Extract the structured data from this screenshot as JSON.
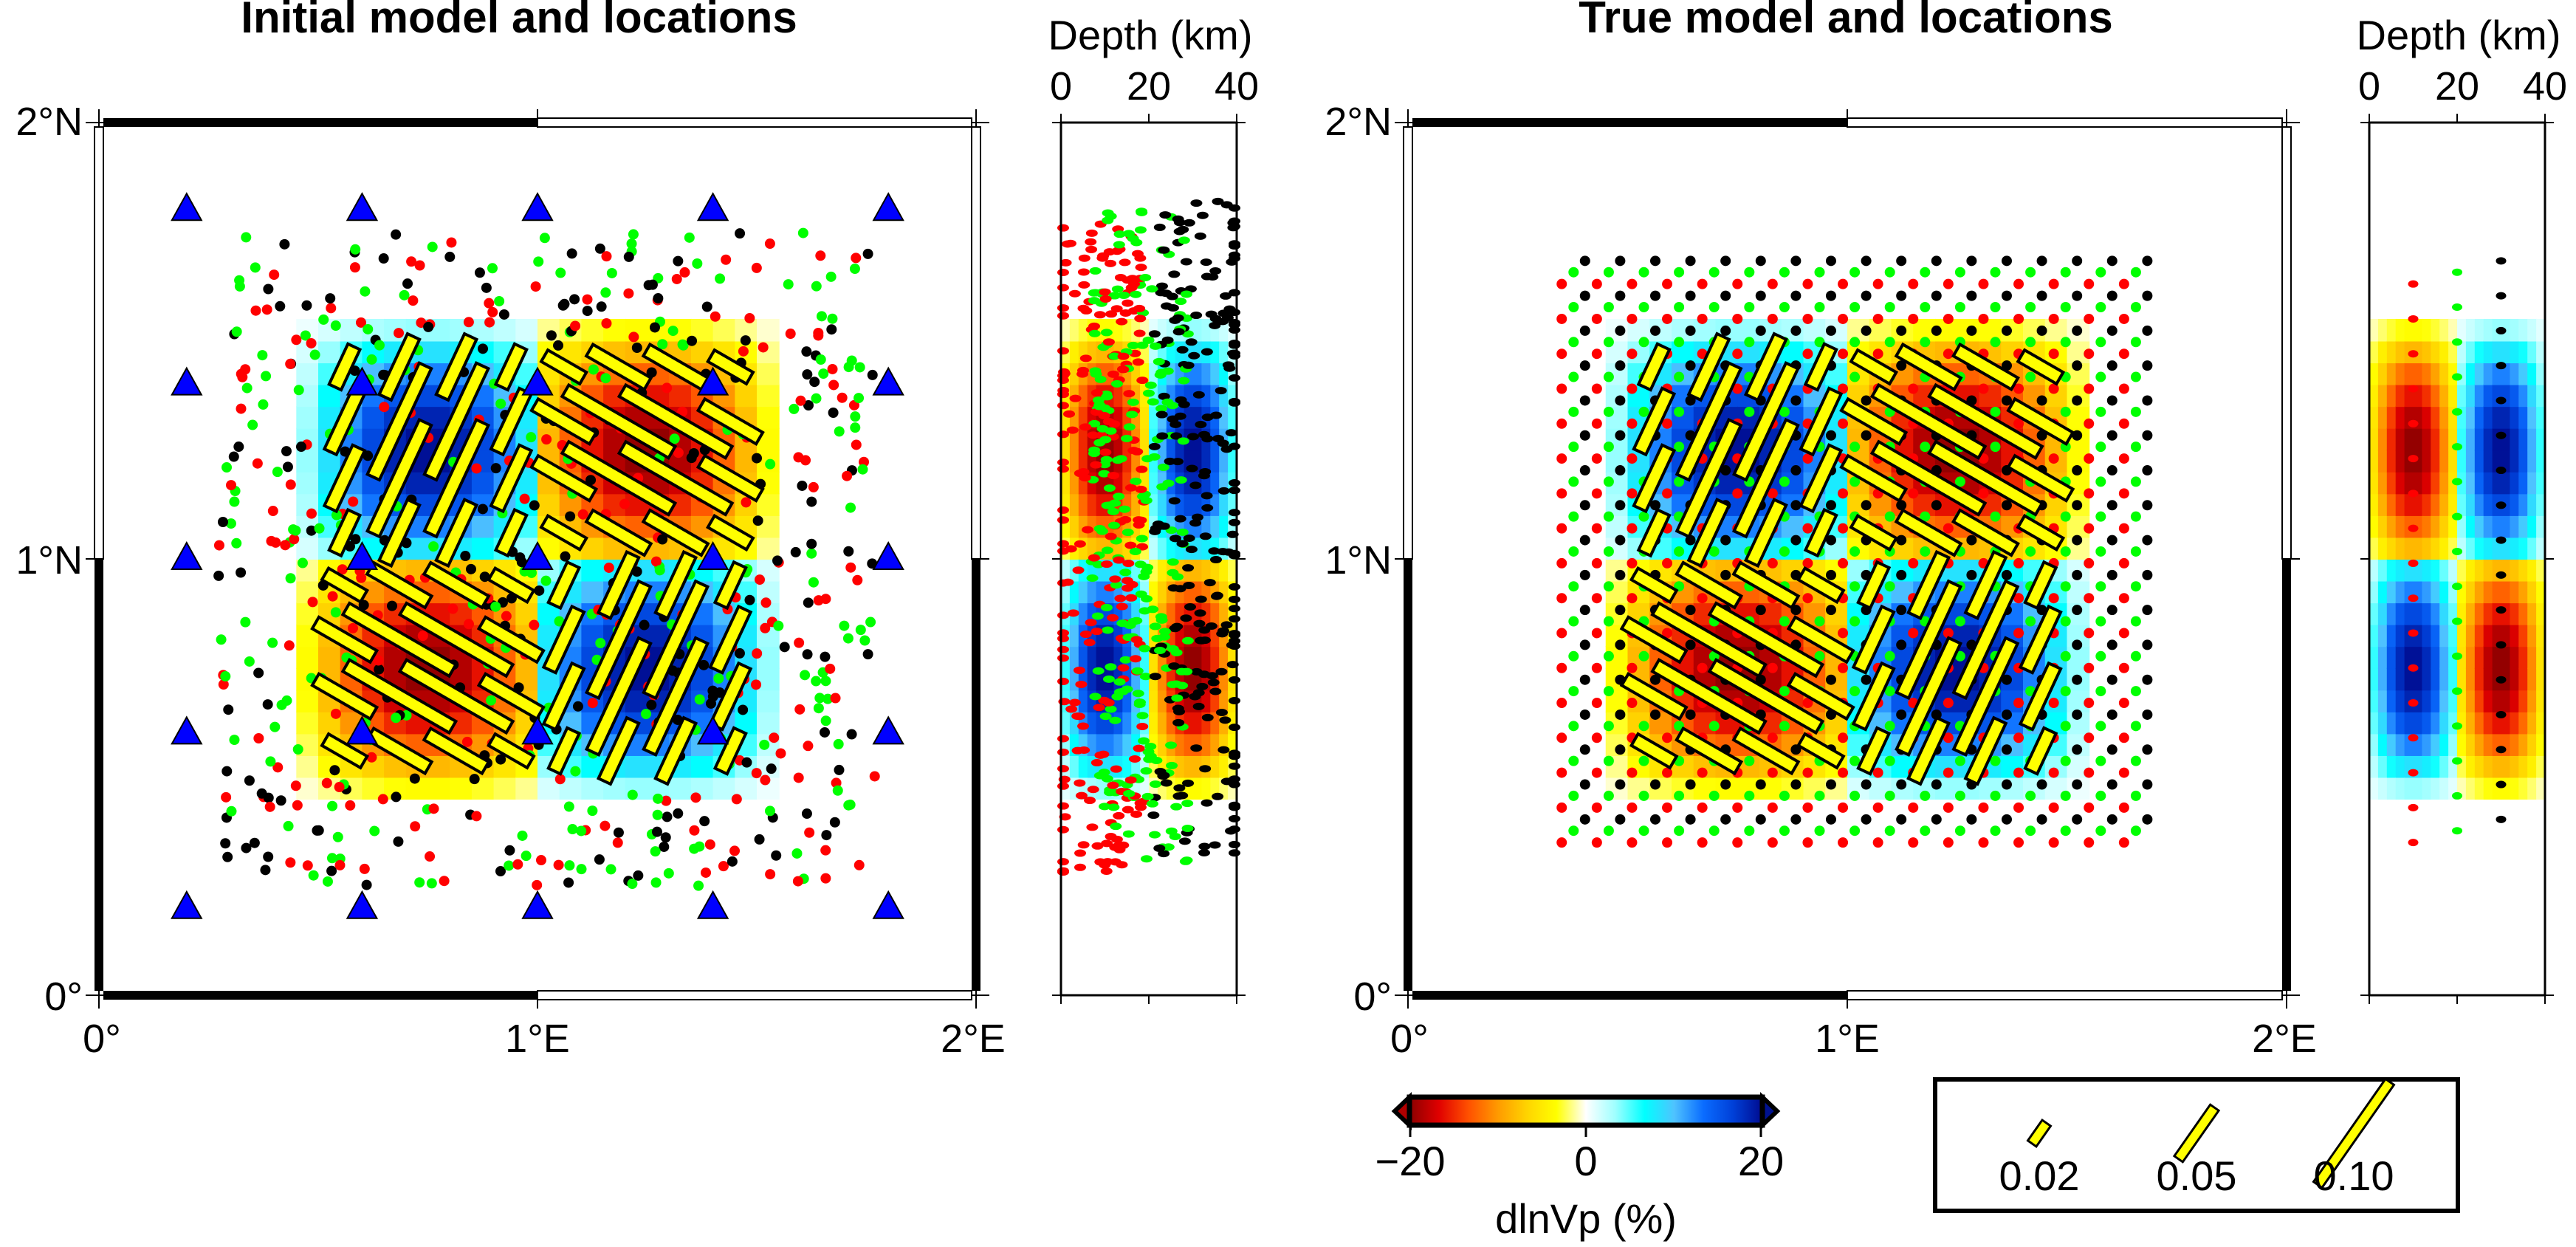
{
  "figure": {
    "panels": [
      {
        "id": "initial",
        "title": "Initial model and locations",
        "lon_ticks": [
          "0°",
          "1°E",
          "2°E"
        ],
        "lat_ticks": [
          "0°",
          "1°N",
          "2°N"
        ],
        "event_pattern": "scattered",
        "show_stations": true
      },
      {
        "id": "true",
        "title": "True model and locations",
        "lon_ticks": [
          "0°",
          "1°E",
          "2°E"
        ],
        "lat_ticks": [
          "0°",
          "1°N",
          "2°N"
        ],
        "event_pattern": "grid",
        "show_stations": false
      }
    ],
    "depth_axis": {
      "label": "Depth (km)",
      "ticks": [
        "0",
        "20",
        "40"
      ],
      "range": [
        0,
        40
      ]
    },
    "map_region": {
      "lon": [
        0,
        2
      ],
      "lat": [
        0,
        2
      ]
    },
    "colorbar": {
      "label": "dlnVp (%)",
      "ticks": [
        "−20",
        "0",
        "20"
      ],
      "range": [
        -20,
        20
      ],
      "colors": [
        "#8b0000",
        "#e00000",
        "#ff5000",
        "#ff9a00",
        "#ffd400",
        "#ffff00",
        "#ffffff",
        "#9fffff",
        "#00ffff",
        "#4fc3ff",
        "#0a6cff",
        "#0040d8",
        "#000b8f"
      ]
    },
    "legend": {
      "items": [
        {
          "label": "0.02",
          "value": 0.02
        },
        {
          "label": "0.05",
          "value": 0.05
        },
        {
          "label": "0.10",
          "value": 0.1
        }
      ],
      "bar_color": "#ffff00"
    },
    "checkerboard": {
      "cells": [
        {
          "lon": [
            0.5,
            1.0
          ],
          "lat": [
            1.0,
            1.5
          ],
          "sign": 1,
          "layer": "shallow"
        },
        {
          "lon": [
            1.0,
            1.5
          ],
          "lat": [
            1.0,
            1.5
          ],
          "sign": -1,
          "layer": "shallow"
        },
        {
          "lon": [
            0.5,
            1.0
          ],
          "lat": [
            0.5,
            1.0
          ],
          "sign": -1,
          "layer": "shallow"
        },
        {
          "lon": [
            1.0,
            1.5
          ],
          "lat": [
            0.5,
            1.0
          ],
          "sign": 1,
          "layer": "shallow"
        }
      ],
      "amplitude_pct": 20,
      "fast_direction_blue_deg": 25,
      "fast_direction_red_deg": 120
    },
    "stations": {
      "lons": [
        0.2,
        0.6,
        1.0,
        1.4,
        1.8
      ],
      "lats": [
        0.2,
        0.6,
        1.0,
        1.4,
        1.8
      ],
      "color": "#0000ff"
    },
    "event_colors": {
      "shallow": "#ff0000",
      "middle": "#00ff00",
      "deep": "#000000"
    },
    "event_depths_km": {
      "shallow": 10,
      "middle": 20,
      "deep": 30
    }
  }
}
